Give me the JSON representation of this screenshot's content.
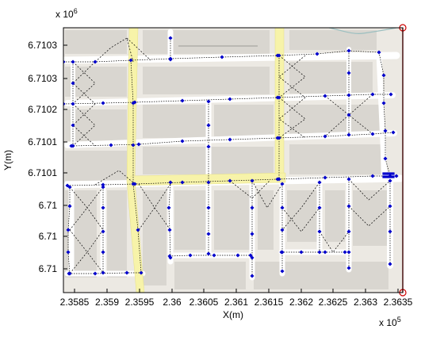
{
  "figure": {
    "y_exponent": {
      "base": "x 10",
      "power": "6"
    },
    "x_exponent": {
      "base": "x 10",
      "power": "5"
    },
    "xlabel": "X(m)",
    "ylabel": "Y(m)",
    "xticks": [
      "2.3585",
      "2.359",
      "2.3595",
      "2.36",
      "2.3605",
      "2.361",
      "2.3615",
      "2.362",
      "2.3625",
      "2.363",
      "2.3635"
    ],
    "yticks": [
      "6.7103",
      "6.7103",
      "6.7102",
      "6.7101",
      "6.7101",
      "6.71",
      "6.71",
      "6.71"
    ],
    "colors": {
      "map_bg": "#ece9e3",
      "block": "#d9d6d0",
      "road": "#ffffff",
      "highlight_road": "#f7f3a9",
      "node": "#0000cc",
      "path": "#000000",
      "boundary": "#cc0000"
    }
  }
}
